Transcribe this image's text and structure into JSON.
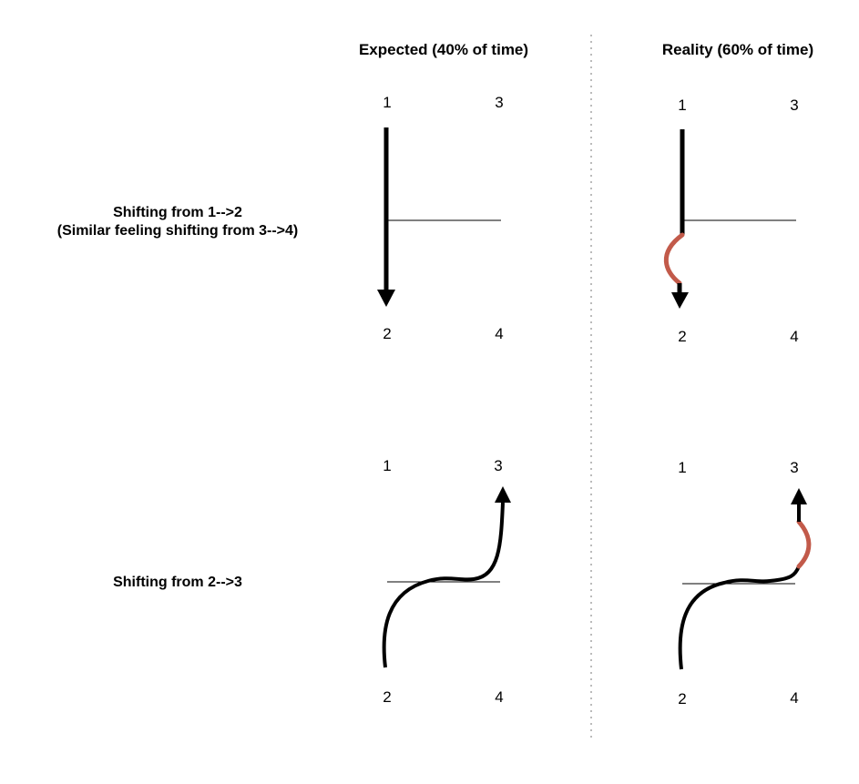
{
  "columns": {
    "expected": "Expected (40% of time)",
    "reality": "Reality (60% of time)"
  },
  "rows": {
    "row1": {
      "label_line1": "Shifting from 1-->2",
      "label_line2": "(Similar feeling shifting from 3-->4)"
    },
    "row2": {
      "label": "Shifting from 2-->3"
    }
  },
  "gears": {
    "g1": "1",
    "g2": "2",
    "g3": "3",
    "g4": "4"
  },
  "colors": {
    "path": "#000000",
    "hesitation": "#c25a4a",
    "divider": "#bbbbbb"
  }
}
